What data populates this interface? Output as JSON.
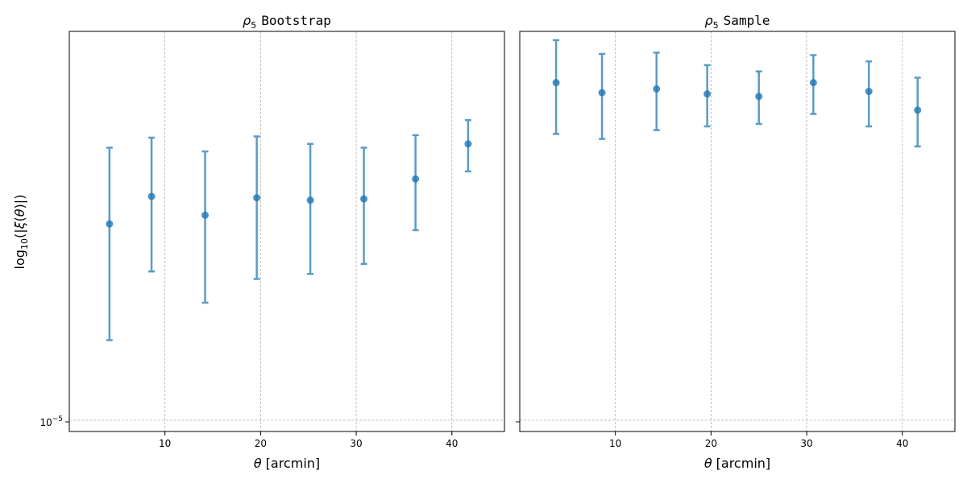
{
  "chart_data": [
    {
      "type": "scatter",
      "title_symbol": "ρ",
      "title_subscript": "5",
      "title_text": "Bootstrap",
      "xlabel_symbol": "θ",
      "xlabel_text": "[arcmin]",
      "ylabel": "log10(|ξ(θ)|)",
      "xlim": [
        0,
        45.5
      ],
      "xticks": [
        10,
        20,
        30,
        40
      ],
      "ytick_label": "10^-5",
      "grid": true,
      "marker_color": "#1f77b4",
      "errorbar_color": "#5b9bc6",
      "series": [
        {
          "x": [
            4.2,
            8.6,
            14.2,
            19.6,
            25.2,
            30.8,
            36.2,
            41.7
          ],
          "y": [
            3.06,
            3.28,
            3.13,
            3.27,
            3.25,
            3.26,
            3.42,
            3.7
          ],
          "y_low": [
            2.13,
            2.68,
            2.43,
            2.62,
            2.66,
            2.74,
            3.01,
            3.48
          ],
          "y_high": [
            3.67,
            3.75,
            3.64,
            3.76,
            3.7,
            3.67,
            3.77,
            3.89
          ]
        }
      ],
      "ylim": [
        1.4,
        4.6
      ],
      "y_ref_line": 1.49
    },
    {
      "type": "scatter",
      "title_symbol": "ρ",
      "title_subscript": "5",
      "title_text": "Sample",
      "xlabel_symbol": "θ",
      "xlabel_text": "[arcmin]",
      "xlim": [
        0,
        45.5
      ],
      "xticks": [
        10,
        20,
        30,
        40
      ],
      "grid": true,
      "marker_color": "#1f77b4",
      "errorbar_color": "#5b9bc6",
      "series": [
        {
          "x": [
            3.8,
            8.6,
            14.3,
            19.6,
            25.0,
            30.7,
            36.5,
            41.6
          ],
          "y": [
            4.19,
            4.11,
            4.14,
            4.1,
            4.08,
            4.19,
            4.12,
            3.97
          ],
          "y_low": [
            3.78,
            3.74,
            3.81,
            3.84,
            3.86,
            3.94,
            3.84,
            3.68
          ],
          "y_high": [
            4.53,
            4.42,
            4.43,
            4.33,
            4.28,
            4.41,
            4.36,
            4.23
          ]
        }
      ],
      "ylim": [
        1.4,
        4.6
      ],
      "y_ref_line": 1.49
    }
  ]
}
